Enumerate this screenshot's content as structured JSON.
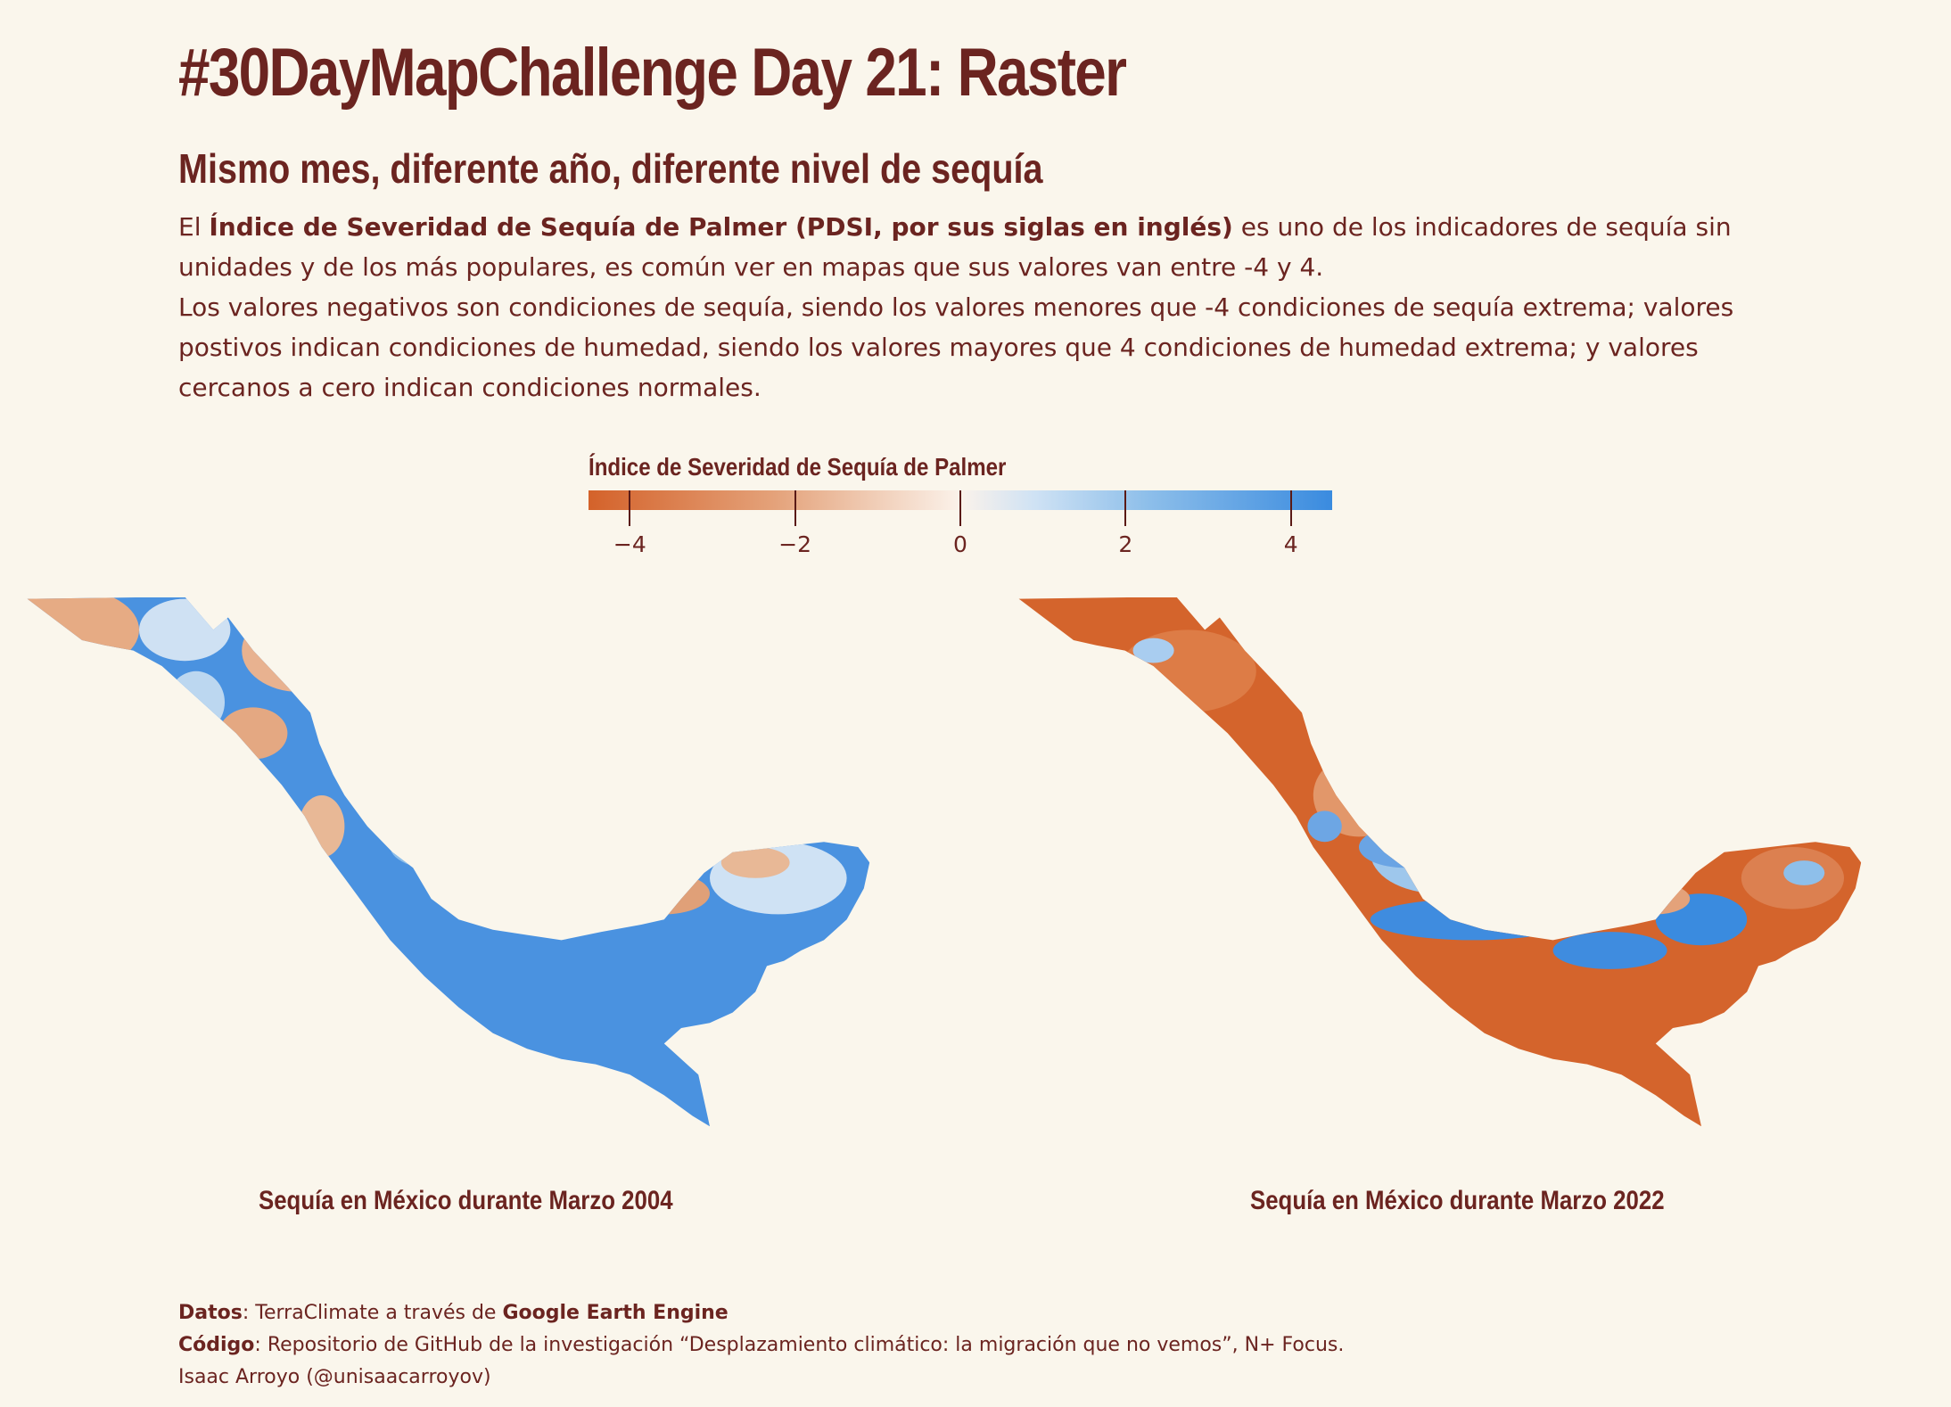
{
  "header": {
    "title": "#30DayMapChallenge Day 21: Raster",
    "subtitle": "Mismo mes, diferente año, diferente nivel de sequía"
  },
  "description": {
    "p1_pre": "El ",
    "p1_bold": "Índice de Severidad de Sequía de Palmer (PDSI, por sus siglas en inglés)",
    "p1_post": " es uno de los indicadores de sequía sin unidades y de los más populares, es común ver en mapas que sus valores van entre -4 y 4.",
    "p2": "Los valores negativos son condiciones de sequía, siendo los valores menores que -4 condiciones de sequía extrema; valores postivos indican condiciones de humedad, siendo los valores mayores que 4 condiciones de humedad extrema; y valores cercanos a cero indican condiciones normales."
  },
  "legend": {
    "title": "Índice de Severidad de Sequía de Palmer",
    "range": [
      -4.5,
      4.5
    ],
    "ticks": [
      {
        "value": -4,
        "label": "−4"
      },
      {
        "value": -2,
        "label": "−2"
      },
      {
        "value": 0,
        "label": "0"
      },
      {
        "value": 2,
        "label": "2"
      },
      {
        "value": 4,
        "label": "4"
      }
    ],
    "colors": {
      "dry": "#d4622a",
      "neutral": "#fbf2ea",
      "wet": "#3a8bdf"
    }
  },
  "maps": [
    {
      "caption": "Sequía en México durante Marzo 2004",
      "dominant": "wet"
    },
    {
      "caption": "Sequía en México durante Marzo 2022",
      "dominant": "dry"
    }
  ],
  "credits": {
    "datos_key": "Datos",
    "datos_pre": ": TerraClimate a través de ",
    "datos_bold": "Google Earth Engine",
    "codigo_key": "Código",
    "codigo_text": ": Repositorio de GitHub de la investigación “Desplazamiento climático: la migración que no vemos”, N+ Focus.",
    "author": "Isaac Arroyo (@unisaacarroyov)"
  }
}
